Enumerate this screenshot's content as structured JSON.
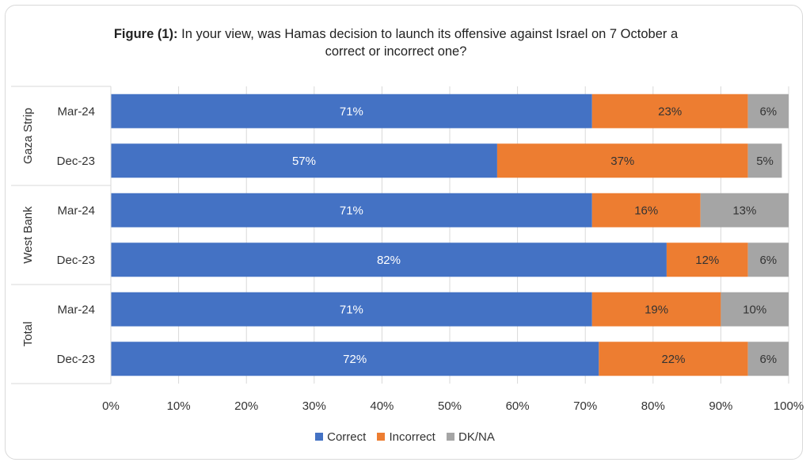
{
  "title": {
    "prefix": "Figure (1):",
    "text": "In your view, was Hamas decision to launch its offensive against Israel on 7 October a correct or incorrect one?"
  },
  "colors": {
    "Correct": "#4472c4",
    "Incorrect": "#ed7d31",
    "DK/NA": "#a5a5a5",
    "grid": "#d9d9d9",
    "axis_text": "#333333"
  },
  "chart_data": {
    "type": "bar",
    "orientation": "horizontal",
    "stacked": true,
    "title": "Figure (1): In your view, was Hamas decision to launch its offensive against Israel on 7 October a correct or incorrect one?",
    "xlim": [
      0,
      100
    ],
    "xticks": [
      "0%",
      "10%",
      "20%",
      "30%",
      "40%",
      "50%",
      "60%",
      "70%",
      "80%",
      "90%",
      "100%"
    ],
    "groups": [
      {
        "name": "Gaza Strip",
        "rows": [
          "Mar-24",
          "Dec-23"
        ]
      },
      {
        "name": "West Bank",
        "rows": [
          "Mar-24",
          "Dec-23"
        ]
      },
      {
        "name": "Total",
        "rows": [
          "Mar-24",
          "Dec-23"
        ]
      }
    ],
    "series": [
      {
        "name": "Correct",
        "values": [
          71,
          57,
          71,
          82,
          71,
          72
        ],
        "labels": [
          "71%",
          "57%",
          "71%",
          "82%",
          "71%",
          "72%"
        ]
      },
      {
        "name": "Incorrect",
        "values": [
          23,
          37,
          16,
          12,
          19,
          22
        ],
        "labels": [
          "23%",
          "37%",
          "16%",
          "12%",
          "19%",
          "22%"
        ]
      },
      {
        "name": "DK/NA",
        "values": [
          6,
          5,
          13,
          6,
          10,
          6
        ],
        "labels": [
          "6%",
          "5%",
          "13%",
          "6%",
          "10%",
          "6%"
        ]
      }
    ],
    "legend": [
      "Correct",
      "Incorrect",
      "DK/NA"
    ],
    "legend_position": "bottom"
  }
}
